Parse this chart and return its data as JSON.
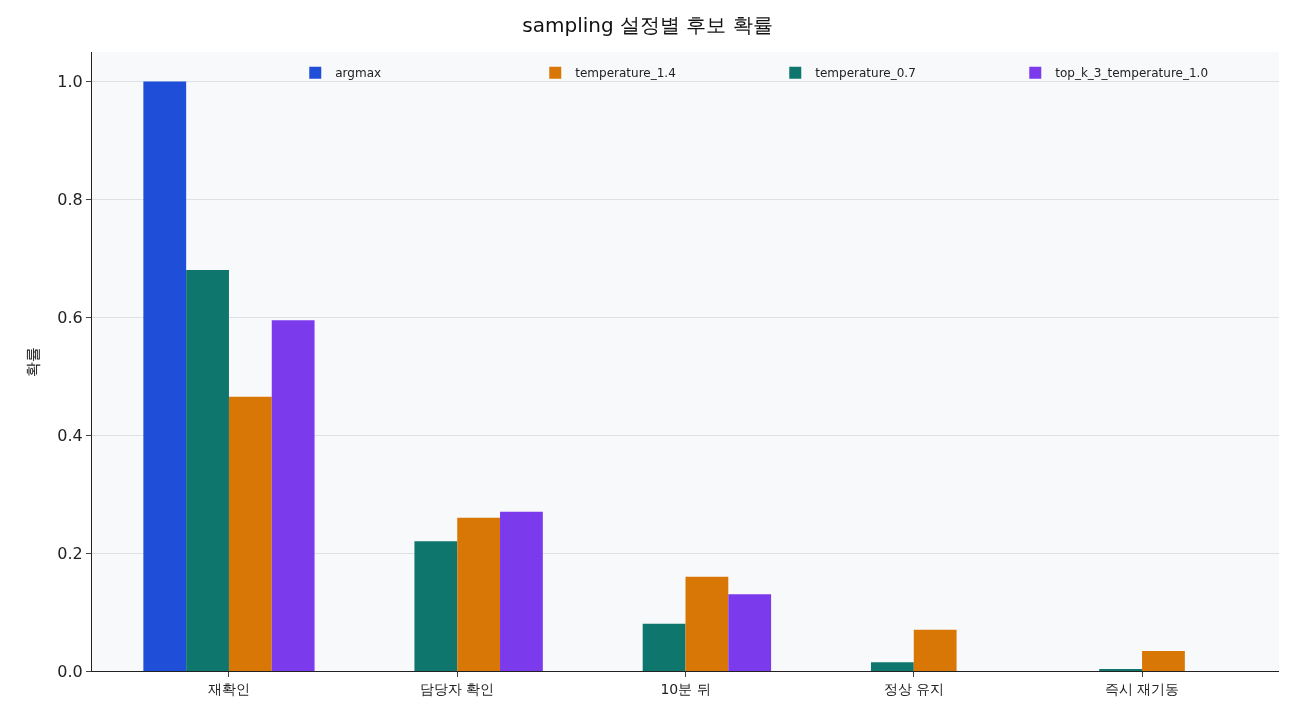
{
  "chart_data": {
    "type": "bar",
    "title": "sampling 설정별 후보 확률",
    "ylabel": "확률",
    "categories": [
      "재확인",
      "담당자 확인",
      "10분 뒤",
      "정상 유지",
      "즉시 재기동"
    ],
    "series": [
      {
        "name": "argmax",
        "color": "#1f4fd8",
        "values": [
          1.0,
          0,
          0,
          0,
          0
        ]
      },
      {
        "name": "temperature_0.7",
        "color": "#0f766e",
        "values": [
          0.68,
          0.22,
          0.08,
          0.015,
          0.003
        ]
      },
      {
        "name": "temperature_1.4",
        "color": "#d97706",
        "values": [
          0.465,
          0.26,
          0.16,
          0.07,
          0.034
        ]
      },
      {
        "name": "top_k_3_temperature_1.0",
        "color": "#7c3aed",
        "values": [
          0.595,
          0.27,
          0.13,
          0,
          0
        ]
      }
    ],
    "ylim": [
      0,
      1.05
    ],
    "yticks": [
      {
        "value": 0,
        "label": "0.0"
      },
      {
        "value": 0.2,
        "label": "0.2"
      },
      {
        "value": 0.4,
        "label": "0.4"
      },
      {
        "value": 0.6,
        "label": "0.6"
      },
      {
        "value": 0.8,
        "label": "0.8"
      },
      {
        "value": 1.0,
        "label": "1.0"
      }
    ],
    "grid": "y",
    "legend": "top right"
  }
}
